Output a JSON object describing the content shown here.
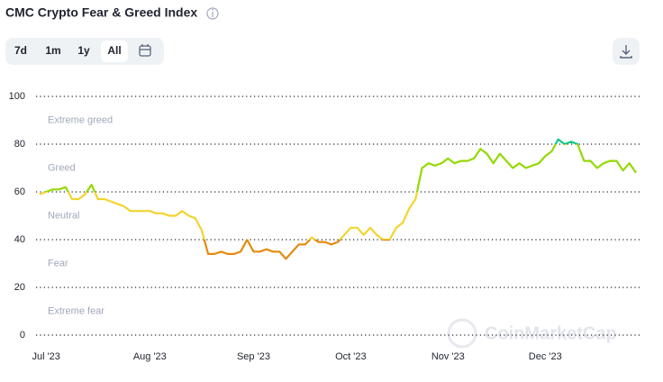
{
  "chart_data": {
    "type": "line",
    "title": "CMC Crypto Fear & Greed Index",
    "categories": [
      null,
      "Jul '23",
      null,
      null,
      null,
      null,
      null,
      null,
      null,
      null,
      null,
      null,
      null,
      null,
      null,
      null,
      null,
      "Aug '23",
      null,
      null,
      null,
      null,
      null,
      null,
      null,
      null,
      null,
      null,
      null,
      null,
      null,
      null,
      null,
      "Sep '23",
      null,
      null,
      null,
      null,
      null,
      null,
      null,
      null,
      null,
      null,
      null,
      null,
      null,
      null,
      "Oct '23",
      null,
      null,
      null,
      null,
      null,
      null,
      null,
      null,
      null,
      null,
      null,
      null,
      null,
      null,
      "Nov '23",
      null,
      null,
      null,
      null,
      null,
      null,
      null,
      null,
      null,
      null,
      null,
      null,
      null,
      null,
      "Dec '23",
      null,
      null,
      null,
      null,
      null,
      null,
      null,
      null,
      null,
      null,
      null,
      null,
      null,
      null
    ],
    "series": [
      {
        "values": [
          59,
          60,
          61,
          61,
          62,
          57,
          57,
          59,
          63,
          57,
          57,
          56,
          55,
          54,
          52,
          52,
          52,
          52,
          51,
          51,
          50,
          50,
          52,
          50,
          49,
          44,
          34,
          34,
          35,
          34,
          34,
          35,
          40,
          35,
          35,
          36,
          35,
          35,
          32,
          35,
          38,
          38,
          41,
          39,
          39,
          38,
          39,
          42,
          45,
          45,
          42,
          45,
          42,
          40,
          40,
          45,
          47,
          53,
          57,
          70,
          72,
          71,
          72,
          74,
          72,
          73,
          73,
          74,
          78,
          76,
          72,
          76,
          73,
          70,
          72,
          70,
          71,
          72,
          75,
          77,
          82,
          80,
          81,
          80,
          73,
          73,
          70,
          72,
          73,
          73,
          69,
          72,
          68
        ]
      }
    ],
    "ylim": [
      0,
      100
    ],
    "yticks": [
      0,
      20,
      40,
      60,
      80,
      100
    ],
    "grid": true,
    "zones": [
      {
        "label": "Extreme fear",
        "from": 0,
        "to": 20,
        "color": "#ea3943"
      },
      {
        "label": "Fear",
        "from": 20,
        "to": 40,
        "color": "#e48a0e"
      },
      {
        "label": "Neutral",
        "from": 40,
        "to": 60,
        "color": "#f3d42f"
      },
      {
        "label": "Greed",
        "from": 60,
        "to": 80,
        "color": "#93d900"
      },
      {
        "label": "Extreme greed",
        "from": 80,
        "to": 100,
        "color": "#16c784"
      }
    ]
  },
  "controls": {
    "ranges": [
      "7d",
      "1m",
      "1y",
      "All"
    ],
    "selected": "All"
  },
  "watermark": "CoinMarketCap"
}
